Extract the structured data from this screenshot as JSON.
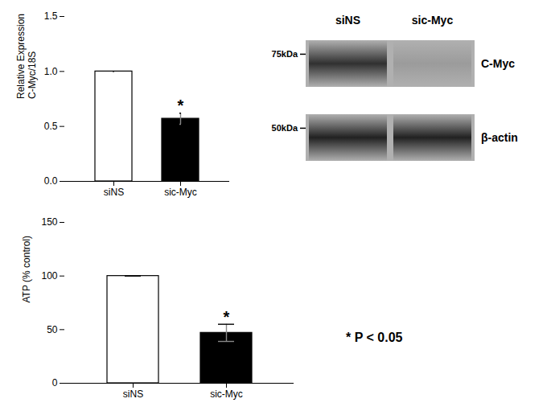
{
  "chart_data": [
    {
      "type": "bar",
      "categories": [
        "siNS",
        "sic-Myc"
      ],
      "values": [
        1.0,
        0.57
      ],
      "errors": [
        0.0,
        0.05
      ],
      "colors": [
        "white",
        "black"
      ],
      "ylabel": "Relative Expression\nC-Myc/18S",
      "ylim": [
        0,
        1.5
      ],
      "yticks": [
        {
          "value": 0.0,
          "label": "0.0"
        },
        0.5,
        {
          "value": 1.0,
          "label": "1.0"
        },
        1.5
      ],
      "annotations": [
        {
          "category": "sic-Myc",
          "y": 0.64,
          "text": "*"
        }
      ]
    },
    {
      "type": "blot",
      "lanes": [
        "siNS",
        "sic-Myc"
      ],
      "bands": [
        {
          "name": "C-Myc",
          "ladder": "75kDa",
          "colors": [
            "#222222",
            "#999999"
          ]
        },
        {
          "name": "β-actin",
          "ladder": "50kDa",
          "colors": [
            "#111111",
            "#111111"
          ]
        }
      ]
    },
    {
      "type": "bar",
      "categories": [
        "siNS",
        "sic-Myc"
      ],
      "values": [
        100,
        47
      ],
      "errors": [
        0.0,
        8
      ],
      "colors": [
        "white",
        "black"
      ],
      "ylabel": "ATP (% control)",
      "ylim": [
        0,
        150
      ],
      "yticks": [
        0,
        50,
        100,
        150
      ],
      "annotations": [
        {
          "category": "sic-Myc",
          "y": 57,
          "text": "*"
        }
      ]
    },
    {
      "type": "annotation",
      "text": "* P < 0.05"
    }
  ]
}
